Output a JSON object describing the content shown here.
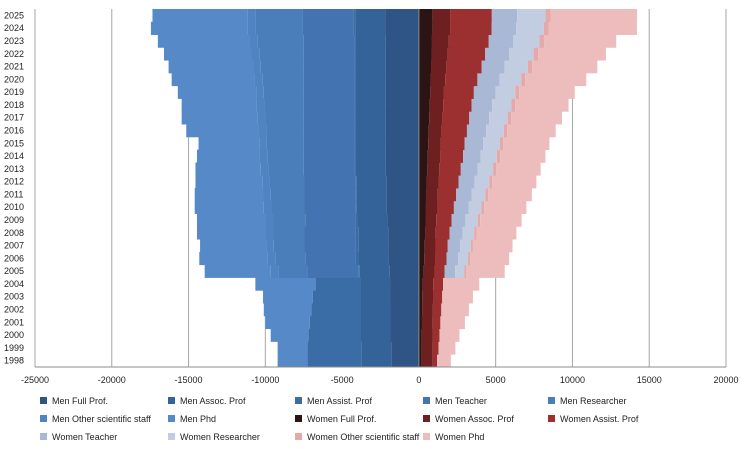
{
  "chart_data": {
    "type": "bar",
    "orientation": "horizontal-stacked-diverging",
    "title": "",
    "xlabel": "",
    "ylabel": "",
    "xlim": [
      -25000,
      20000
    ],
    "xticks": [
      "-25000",
      "-20000",
      "-15000",
      "-10000",
      "-5000",
      "0",
      "5000",
      "10000",
      "15000",
      "20000"
    ],
    "xtick_values": [
      -25000,
      -20000,
      -15000,
      -10000,
      -5000,
      0,
      5000,
      10000,
      15000,
      20000
    ],
    "grid": "vertical",
    "legend": "bottom",
    "categories": [
      "1998",
      "1999",
      "2000",
      "2001",
      "2002",
      "2003",
      "2004",
      "2005",
      "2006",
      "2007",
      "2008",
      "2009",
      "2010",
      "2011",
      "2012",
      "2013",
      "2014",
      "2015",
      "2016",
      "2017",
      "2018",
      "2019",
      "2020",
      "2021",
      "2022",
      "2023",
      "2024",
      "2025"
    ],
    "series": [
      {
        "name": "Men Full Prof.",
        "color": "#2E5585",
        "values": [
          -1800,
          -1800,
          -1850,
          -1850,
          -1850,
          -1850,
          -1850,
          -1900,
          -1950,
          -2000,
          -2000,
          -2050,
          -2100,
          -2100,
          -2100,
          -2150,
          -2150,
          -2150,
          -2150,
          -2150,
          -2150,
          -2150,
          -2150,
          -2150,
          -2150,
          -2150,
          -2200,
          -2200
        ]
      },
      {
        "name": "Men Assoc. Prof",
        "color": "#34639A",
        "values": [
          -1950,
          -1950,
          -1950,
          -1950,
          -1950,
          -1950,
          -1950,
          -1950,
          -1950,
          -1950,
          -1950,
          -1950,
          -1950,
          -1950,
          -1950,
          -1950,
          -1950,
          -1950,
          -1950,
          -1950,
          -1950,
          -1950,
          -1950,
          -1950,
          -1950,
          -1950,
          -1950,
          -1950
        ]
      },
      {
        "name": "Men Assist. Prof",
        "color": "#3A6CA6",
        "values": [
          -3500,
          -3500,
          -3400,
          -3300,
          -3200,
          -3100,
          -2900,
          -100,
          -200,
          -200,
          -200,
          -100,
          -100,
          -100,
          -100,
          -100,
          -100,
          -100,
          -100,
          -100,
          -100,
          -100,
          -100,
          -100,
          -100,
          -100,
          -100,
          -100
        ]
      },
      {
        "name": "Men Teacher",
        "color": "#4373B0",
        "values": [
          0,
          0,
          0,
          0,
          0,
          0,
          0,
          -3300,
          -3300,
          -3300,
          -3300,
          -3300,
          -3300,
          -3300,
          -3300,
          -3300,
          -3300,
          -3300,
          -3300,
          -3300,
          -3300,
          -3300,
          -3300,
          -3300,
          -3300,
          -3300,
          -3300,
          -3300
        ]
      },
      {
        "name": "Men Researcher",
        "color": "#4A7EBB",
        "values": [
          0,
          0,
          0,
          0,
          0,
          0,
          0,
          -1900,
          -1950,
          -2000,
          -2050,
          -2100,
          -2150,
          -2200,
          -2250,
          -2300,
          -2350,
          -2400,
          -2450,
          -2500,
          -2550,
          -2600,
          -2700,
          -2800,
          -2900,
          -3000,
          -3100,
          -3100
        ]
      },
      {
        "name": "Men Other scientific staff",
        "color": "#4F83C2",
        "values": [
          0,
          0,
          0,
          0,
          0,
          0,
          0,
          -500,
          -500,
          -500,
          -500,
          -500,
          -500,
          -500,
          -500,
          -500,
          -500,
          -500,
          -500,
          -500,
          -500,
          -500,
          -500,
          -500,
          -500,
          -500,
          -500,
          -500
        ]
      },
      {
        "name": "Men Phd",
        "color": "#5689C8",
        "values": [
          -1950,
          -1950,
          -2450,
          -2900,
          -3100,
          -3250,
          -3950,
          -4300,
          -4450,
          -4300,
          -4450,
          -4450,
          -4500,
          -4450,
          -4350,
          -4250,
          -4100,
          -3950,
          -4700,
          -4950,
          -4900,
          -5100,
          -5400,
          -5500,
          -5700,
          -6000,
          -6300,
          -6200
        ]
      },
      {
        "name": "Women Full Prof.",
        "color": "#2C1414",
        "values": [
          180,
          180,
          190,
          200,
          210,
          220,
          230,
          320,
          350,
          380,
          400,
          430,
          460,
          490,
          520,
          550,
          580,
          610,
          640,
          670,
          700,
          730,
          760,
          790,
          820,
          850,
          880,
          900
        ]
      },
      {
        "name": "Women Assoc. Prof",
        "color": "#6E1F1F",
        "values": [
          700,
          700,
          700,
          700,
          700,
          700,
          700,
          700,
          700,
          700,
          700,
          700,
          720,
          740,
          760,
          780,
          800,
          820,
          840,
          860,
          880,
          900,
          950,
          1000,
          1050,
          1100,
          1150,
          1150
        ]
      },
      {
        "name": "Women Assist. Prof",
        "color": "#9C2F2F",
        "values": [
          300,
          400,
          450,
          500,
          550,
          600,
          650,
          650,
          750,
          800,
          900,
          1000,
          1100,
          1200,
          1300,
          1400,
          1500,
          1550,
          1650,
          1750,
          1850,
          1950,
          2100,
          2300,
          2450,
          2600,
          2700,
          2700
        ]
      },
      {
        "name": "Women Teacher",
        "color": "#A9B8D4",
        "values": [
          0,
          0,
          0,
          0,
          0,
          0,
          0,
          700,
          750,
          800,
          850,
          900,
          950,
          1000,
          1050,
          1100,
          1150,
          1200,
          1250,
          1300,
          1350,
          1400,
          1450,
          1500,
          1550,
          1600,
          1600,
          1650
        ]
      },
      {
        "name": "Women Researcher",
        "color": "#C3CDE2",
        "values": [
          0,
          0,
          0,
          0,
          0,
          0,
          0,
          600,
          650,
          700,
          750,
          800,
          850,
          900,
          950,
          1000,
          1050,
          1100,
          1150,
          1200,
          1250,
          1300,
          1400,
          1500,
          1600,
          1700,
          1800,
          1850
        ]
      },
      {
        "name": "Women Other scientific staff",
        "color": "#E6A9A9",
        "values": [
          0,
          0,
          0,
          0,
          0,
          0,
          0,
          120,
          130,
          140,
          150,
          160,
          170,
          180,
          190,
          200,
          210,
          220,
          230,
          240,
          250,
          260,
          270,
          280,
          290,
          300,
          310,
          320
        ]
      },
      {
        "name": "Women Phd",
        "color": "#EDBDBD",
        "values": [
          900,
          1100,
          1300,
          1600,
          1800,
          2000,
          2350,
          2500,
          2550,
          2580,
          2600,
          2700,
          2750,
          2850,
          2880,
          2900,
          2950,
          3000,
          3150,
          3300,
          3470,
          3610,
          3970,
          4250,
          4420,
          4700,
          5760,
          5640
        ]
      }
    ]
  }
}
